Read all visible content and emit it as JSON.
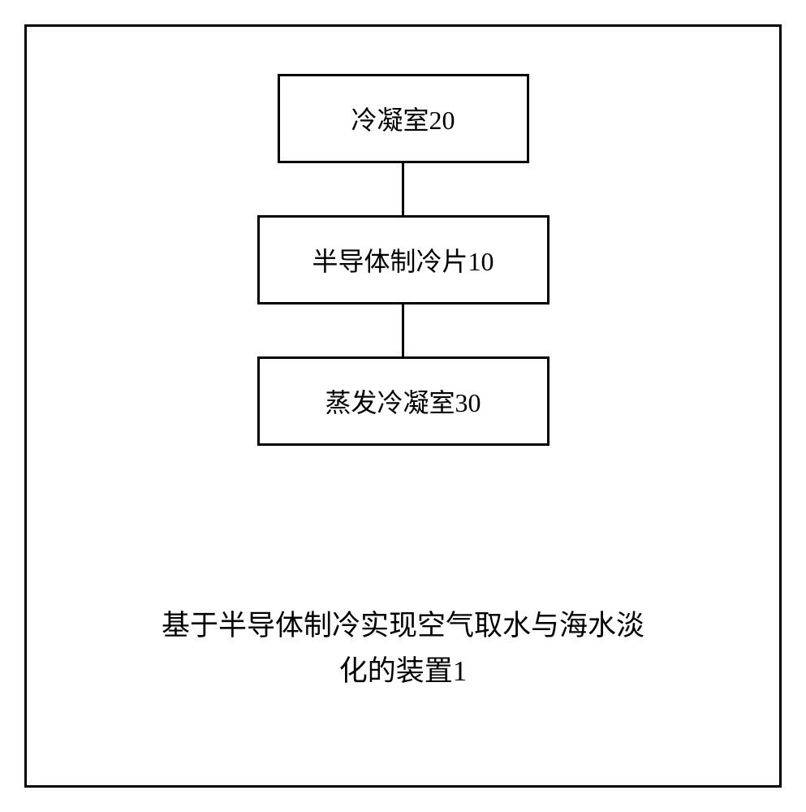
{
  "diagram": {
    "type": "flowchart",
    "nodes": [
      {
        "id": "box1",
        "label": "冷凝室20"
      },
      {
        "id": "box2",
        "label": "半导体制冷片10"
      },
      {
        "id": "box3",
        "label": "蒸发冷凝室30"
      }
    ],
    "edges": [
      {
        "from": "box1",
        "to": "box2"
      },
      {
        "from": "box2",
        "to": "box3"
      }
    ],
    "box_border_color": "#000000",
    "box_border_width": 3,
    "box_background": "#ffffff",
    "box_font_size": 32,
    "box_text_color": "#000000",
    "connector_color": "#000000",
    "connector_width": 3,
    "connector_length": 64,
    "frame_border_color": "#000000",
    "frame_border_width": 3,
    "background_color": "#ffffff"
  },
  "caption": {
    "line1": "基于半导体制冷实现空气取水与海水淡",
    "line2": "化的装置1",
    "font_size": 35,
    "text_color": "#000000"
  }
}
